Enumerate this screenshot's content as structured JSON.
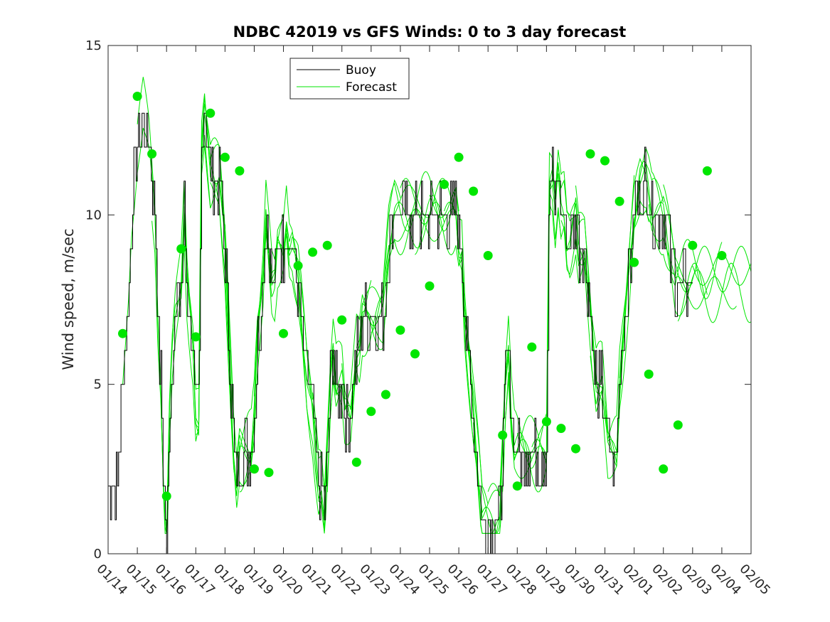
{
  "chart_data": {
    "type": "line",
    "title": "NDBC 42019 vs GFS Winds: 0 to 3 day forecast",
    "xlabel": "",
    "ylabel": "Wind speed, m/sec",
    "x_range_days": [
      0,
      22
    ],
    "x_tick_labels": [
      "01/14",
      "01/15",
      "01/16",
      "01/17",
      "01/18",
      "01/19",
      "01/20",
      "01/21",
      "01/22",
      "01/23",
      "01/24",
      "01/25",
      "01/26",
      "01/27",
      "01/28",
      "01/29",
      "01/30",
      "01/31",
      "02/01",
      "02/02",
      "02/03",
      "02/04",
      "02/05"
    ],
    "ylim": [
      0,
      15
    ],
    "y_ticks": [
      0,
      5,
      10,
      15
    ],
    "grid": false,
    "legend_placement": "top-center",
    "legend": [
      "Buoy",
      "Forecast"
    ],
    "colors": {
      "buoy": "#000000",
      "forecast": "#00e600",
      "axis": "#262626"
    },
    "buoy_day_speed": [
      [
        0.0,
        2
      ],
      [
        0.3,
        2
      ],
      [
        0.5,
        5
      ],
      [
        0.7,
        8
      ],
      [
        0.8,
        10
      ],
      [
        1.0,
        12
      ],
      [
        1.2,
        13
      ],
      [
        1.4,
        12
      ],
      [
        1.5,
        11
      ],
      [
        1.6,
        10
      ],
      [
        1.7,
        7
      ],
      [
        1.8,
        5
      ],
      [
        1.9,
        2
      ],
      [
        2.0,
        0
      ],
      [
        2.1,
        4
      ],
      [
        2.2,
        6
      ],
      [
        2.3,
        7
      ],
      [
        2.5,
        8
      ],
      [
        2.6,
        10
      ],
      [
        2.7,
        8
      ],
      [
        2.8,
        7
      ],
      [
        2.9,
        6
      ],
      [
        3.0,
        4
      ],
      [
        3.1,
        4
      ],
      [
        3.2,
        12
      ],
      [
        3.3,
        13
      ],
      [
        3.4,
        12
      ],
      [
        3.5,
        11
      ],
      [
        3.6,
        11
      ],
      [
        3.7,
        11
      ],
      [
        3.8,
        11
      ],
      [
        3.9,
        10
      ],
      [
        4.0,
        9
      ],
      [
        4.1,
        7
      ],
      [
        4.2,
        5
      ],
      [
        4.3,
        3
      ],
      [
        4.4,
        2
      ],
      [
        4.5,
        3
      ],
      [
        4.6,
        3
      ],
      [
        4.7,
        3
      ],
      [
        4.8,
        3
      ],
      [
        4.9,
        3
      ],
      [
        5.0,
        4
      ],
      [
        5.1,
        6
      ],
      [
        5.2,
        7
      ],
      [
        5.3,
        8
      ],
      [
        5.4,
        10
      ],
      [
        5.5,
        9
      ],
      [
        5.6,
        8
      ],
      [
        5.7,
        8
      ],
      [
        5.8,
        9
      ],
      [
        5.9,
        9
      ],
      [
        6.0,
        9
      ],
      [
        6.1,
        10
      ],
      [
        6.2,
        9
      ],
      [
        6.3,
        9
      ],
      [
        6.5,
        8
      ],
      [
        6.6,
        7
      ],
      [
        6.7,
        6
      ],
      [
        6.8,
        5
      ],
      [
        7.0,
        4
      ],
      [
        7.1,
        3
      ],
      [
        7.2,
        2
      ],
      [
        7.3,
        2
      ],
      [
        7.4,
        1
      ],
      [
        7.5,
        3
      ],
      [
        7.6,
        5
      ],
      [
        7.7,
        6
      ],
      [
        7.8,
        5
      ],
      [
        7.9,
        5
      ],
      [
        8.0,
        5
      ],
      [
        8.1,
        4
      ],
      [
        8.3,
        4
      ],
      [
        8.5,
        6
      ],
      [
        8.6,
        6
      ],
      [
        8.7,
        7
      ],
      [
        8.8,
        7
      ],
      [
        9.0,
        7
      ],
      [
        9.1,
        7
      ],
      [
        9.2,
        7
      ],
      [
        9.4,
        7
      ],
      [
        9.5,
        8
      ],
      [
        9.6,
        9
      ],
      [
        9.8,
        10
      ],
      [
        10.0,
        10
      ],
      [
        10.3,
        10
      ],
      [
        10.6,
        10
      ],
      [
        10.9,
        10
      ],
      [
        11.2,
        10
      ],
      [
        11.5,
        10
      ],
      [
        11.9,
        10
      ],
      [
        12.0,
        9
      ],
      [
        12.1,
        9
      ],
      [
        12.2,
        7
      ],
      [
        12.3,
        6
      ],
      [
        12.4,
        5
      ],
      [
        12.5,
        4
      ],
      [
        12.6,
        3
      ],
      [
        12.7,
        2
      ],
      [
        12.8,
        1
      ],
      [
        13.0,
        1
      ],
      [
        13.2,
        1
      ],
      [
        13.4,
        1
      ],
      [
        13.5,
        3
      ],
      [
        13.6,
        5
      ],
      [
        13.7,
        6
      ],
      [
        13.8,
        4
      ],
      [
        13.9,
        3
      ],
      [
        14.0,
        3
      ],
      [
        14.2,
        3
      ],
      [
        14.4,
        3
      ],
      [
        14.6,
        3
      ],
      [
        14.8,
        3
      ],
      [
        15.0,
        3
      ],
      [
        15.1,
        11
      ],
      [
        15.2,
        11
      ],
      [
        15.3,
        10
      ],
      [
        15.4,
        11
      ],
      [
        15.5,
        10
      ],
      [
        15.6,
        10
      ],
      [
        15.7,
        9
      ],
      [
        15.8,
        9
      ],
      [
        16.0,
        10
      ],
      [
        16.1,
        9
      ],
      [
        16.2,
        9
      ],
      [
        16.3,
        9
      ],
      [
        16.4,
        8
      ],
      [
        16.5,
        7
      ],
      [
        16.6,
        6
      ],
      [
        16.7,
        5
      ],
      [
        16.8,
        5
      ],
      [
        16.9,
        5
      ],
      [
        17.0,
        4
      ],
      [
        17.1,
        3
      ],
      [
        17.2,
        3
      ],
      [
        17.3,
        3
      ],
      [
        17.4,
        3
      ],
      [
        17.5,
        5
      ],
      [
        17.6,
        6
      ],
      [
        17.7,
        7
      ],
      [
        17.8,
        8
      ],
      [
        17.9,
        9
      ],
      [
        18.0,
        10
      ],
      [
        18.2,
        11
      ],
      [
        18.4,
        11
      ],
      [
        18.6,
        10
      ],
      [
        18.8,
        10
      ],
      [
        19.0,
        10
      ],
      [
        19.2,
        9
      ],
      [
        19.4,
        8
      ],
      [
        19.6,
        8
      ],
      [
        19.8,
        8
      ],
      [
        20.0,
        8
      ]
    ],
    "forecast_markers_day_speed": [
      [
        0.5,
        6.5
      ],
      [
        1.0,
        13.5
      ],
      [
        1.5,
        11.8
      ],
      [
        2.0,
        1.7
      ],
      [
        2.5,
        9.0
      ],
      [
        3.0,
        6.4
      ],
      [
        3.5,
        13.0
      ],
      [
        4.0,
        11.7
      ],
      [
        4.5,
        11.3
      ],
      [
        5.0,
        2.5
      ],
      [
        5.5,
        2.4
      ],
      [
        6.0,
        6.5
      ],
      [
        6.5,
        8.5
      ],
      [
        7.0,
        8.9
      ],
      [
        7.5,
        9.1
      ],
      [
        8.0,
        6.9
      ],
      [
        8.5,
        2.7
      ],
      [
        9.0,
        4.2
      ],
      [
        9.5,
        4.7
      ],
      [
        10.0,
        6.6
      ],
      [
        10.5,
        5.9
      ],
      [
        11.0,
        7.9
      ],
      [
        11.5,
        10.9
      ],
      [
        12.0,
        11.7
      ],
      [
        12.5,
        10.7
      ],
      [
        13.0,
        8.8
      ],
      [
        13.5,
        3.5
      ],
      [
        14.0,
        2.0
      ],
      [
        14.5,
        6.1
      ],
      [
        15.0,
        3.9
      ],
      [
        15.5,
        3.7
      ],
      [
        16.0,
        3.1
      ],
      [
        16.5,
        11.8
      ],
      [
        17.0,
        11.6
      ],
      [
        17.5,
        10.4
      ],
      [
        18.0,
        8.6
      ],
      [
        18.5,
        5.3
      ],
      [
        19.0,
        2.5
      ],
      [
        19.5,
        3.8
      ],
      [
        20.0,
        9.1
      ],
      [
        20.5,
        11.3
      ],
      [
        21.0,
        8.8
      ]
    ],
    "forecast_series": [
      {
        "start_day": 0.5,
        "end_day": 3.5
      },
      {
        "start_day": 1.0,
        "end_day": 4.0
      },
      {
        "start_day": 1.5,
        "end_day": 4.5
      },
      {
        "start_day": 2.0,
        "end_day": 5.0
      },
      {
        "start_day": 2.5,
        "end_day": 5.5
      },
      {
        "start_day": 3.0,
        "end_day": 6.0
      },
      {
        "start_day": 3.5,
        "end_day": 6.5
      },
      {
        "start_day": 4.0,
        "end_day": 7.0
      },
      {
        "start_day": 4.5,
        "end_day": 7.5
      },
      {
        "start_day": 5.0,
        "end_day": 8.0
      },
      {
        "start_day": 5.5,
        "end_day": 8.5
      },
      {
        "start_day": 6.0,
        "end_day": 9.0
      },
      {
        "start_day": 6.5,
        "end_day": 9.5
      },
      {
        "start_day": 7.0,
        "end_day": 10.0
      },
      {
        "start_day": 7.5,
        "end_day": 10.5
      },
      {
        "start_day": 8.0,
        "end_day": 11.0
      },
      {
        "start_day": 8.5,
        "end_day": 11.5
      },
      {
        "start_day": 9.0,
        "end_day": 12.0
      },
      {
        "start_day": 9.5,
        "end_day": 12.5
      },
      {
        "start_day": 10.0,
        "end_day": 13.0
      },
      {
        "start_day": 10.5,
        "end_day": 13.5
      },
      {
        "start_day": 11.0,
        "end_day": 14.0
      },
      {
        "start_day": 11.5,
        "end_day": 14.5
      },
      {
        "start_day": 12.0,
        "end_day": 15.0
      },
      {
        "start_day": 12.5,
        "end_day": 15.5
      },
      {
        "start_day": 13.0,
        "end_day": 16.0
      },
      {
        "start_day": 13.5,
        "end_day": 16.5
      },
      {
        "start_day": 14.0,
        "end_day": 17.0
      },
      {
        "start_day": 14.5,
        "end_day": 17.5
      },
      {
        "start_day": 15.0,
        "end_day": 18.0
      },
      {
        "start_day": 15.5,
        "end_day": 18.5
      },
      {
        "start_day": 16.0,
        "end_day": 19.0
      },
      {
        "start_day": 16.5,
        "end_day": 19.5
      },
      {
        "start_day": 17.0,
        "end_day": 20.0
      },
      {
        "start_day": 17.5,
        "end_day": 20.5
      },
      {
        "start_day": 18.0,
        "end_day": 21.0
      },
      {
        "start_day": 18.5,
        "end_day": 21.5
      },
      {
        "start_day": 19.0,
        "end_day": 22.0
      },
      {
        "start_day": 19.5,
        "end_day": 22.0
      },
      {
        "start_day": 20.0,
        "end_day": 22.0
      }
    ]
  }
}
